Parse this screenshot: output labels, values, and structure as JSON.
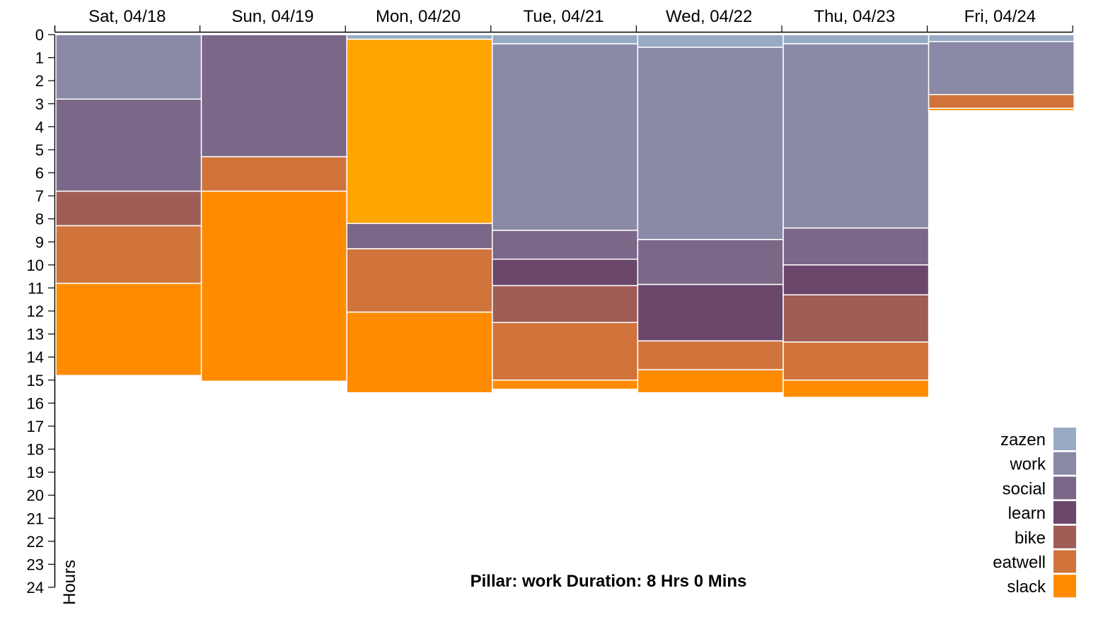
{
  "chart_data": {
    "type": "stacked-bar",
    "orientation": "vertical-downward",
    "ylabel": "Hours",
    "ylim": [
      0,
      24
    ],
    "y_ticks": [
      0,
      1,
      2,
      3,
      4,
      5,
      6,
      7,
      8,
      9,
      10,
      11,
      12,
      13,
      14,
      15,
      16,
      17,
      18,
      19,
      20,
      21,
      22,
      23,
      24
    ],
    "x_tick_labels": [
      "Sat, 04/18",
      "Sun, 04/19",
      "Mon, 04/20",
      "Tue, 04/21",
      "Wed, 04/22",
      "Thu, 04/23",
      "Fri, 04/24"
    ],
    "pillars": [
      {
        "name": "zazen",
        "color": "#98abc5"
      },
      {
        "name": "work",
        "color": "#8a89a6"
      },
      {
        "name": "social",
        "color": "#7b6888"
      },
      {
        "name": "learn",
        "color": "#6b486b"
      },
      {
        "name": "bike",
        "color": "#a05d56"
      },
      {
        "name": "eatwell",
        "color": "#d0743c"
      },
      {
        "name": "slack",
        "color": "#ff8c00"
      }
    ],
    "days": [
      {
        "segments": [
          {
            "pillar": "work",
            "hours": 2.8
          },
          {
            "pillar": "social",
            "hours": 4.0
          },
          {
            "pillar": "bike",
            "hours": 1.5
          },
          {
            "pillar": "eatwell",
            "hours": 2.5
          },
          {
            "pillar": "slack",
            "hours": 4.0
          }
        ]
      },
      {
        "segments": [
          {
            "pillar": "social",
            "hours": 5.3
          },
          {
            "pillar": "eatwell",
            "hours": 1.5
          },
          {
            "pillar": "slack",
            "hours": 8.25
          }
        ]
      },
      {
        "segments": [
          {
            "pillar": "zazen",
            "hours": 0.2
          },
          {
            "pillar": "slack",
            "hours": 8.0,
            "color": "#ffa500"
          },
          {
            "pillar": "social",
            "hours": 1.1
          },
          {
            "pillar": "eatwell",
            "hours": 2.75
          },
          {
            "pillar": "slack",
            "hours": 3.5
          }
        ]
      },
      {
        "segments": [
          {
            "pillar": "zazen",
            "hours": 0.4
          },
          {
            "pillar": "work",
            "hours": 8.1
          },
          {
            "pillar": "social",
            "hours": 1.25
          },
          {
            "pillar": "learn",
            "hours": 1.15
          },
          {
            "pillar": "bike",
            "hours": 1.6
          },
          {
            "pillar": "eatwell",
            "hours": 2.5
          },
          {
            "pillar": "slack",
            "hours": 0.4
          }
        ]
      },
      {
        "segments": [
          {
            "pillar": "zazen",
            "hours": 0.55
          },
          {
            "pillar": "work",
            "hours": 8.35
          },
          {
            "pillar": "social",
            "hours": 1.95
          },
          {
            "pillar": "learn",
            "hours": 2.45
          },
          {
            "pillar": "eatwell",
            "hours": 1.25
          },
          {
            "pillar": "slack",
            "hours": 1.0
          }
        ]
      },
      {
        "segments": [
          {
            "pillar": "zazen",
            "hours": 0.4
          },
          {
            "pillar": "work",
            "hours": 8.0
          },
          {
            "pillar": "social",
            "hours": 1.6
          },
          {
            "pillar": "learn",
            "hours": 1.3
          },
          {
            "pillar": "bike",
            "hours": 2.05
          },
          {
            "pillar": "eatwell",
            "hours": 1.65
          },
          {
            "pillar": "slack",
            "hours": 0.75
          }
        ]
      },
      {
        "segments": [
          {
            "pillar": "zazen",
            "hours": 0.3
          },
          {
            "pillar": "work",
            "hours": 2.3
          },
          {
            "pillar": "eatwell",
            "hours": 0.6
          },
          {
            "pillar": "slack",
            "hours": 0.1
          }
        ]
      }
    ],
    "legend_placement": "bottom-right",
    "info": "Pillar: work Duration: 8 Hrs 0 Mins"
  }
}
